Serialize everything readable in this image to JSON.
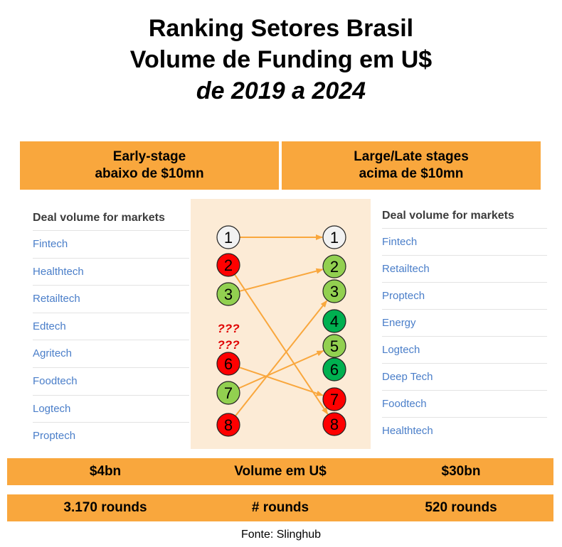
{
  "title": {
    "line1": "Ranking Setores Brasil",
    "line2": "Volume de Funding em U$",
    "line3": "de 2019 a 2024"
  },
  "headers": {
    "left": {
      "line1": "Early-stage",
      "line2": "abaixo de $10mn"
    },
    "right": {
      "line1": "Large/Late stages",
      "line2": "acima de $10mn"
    }
  },
  "left_list": {
    "header": "Deal volume for markets",
    "items": [
      "Fintech",
      "Healthtech",
      "Retailtech",
      "Edtech",
      "Agritech",
      "Foodtech",
      "Logtech",
      "Proptech"
    ]
  },
  "right_list": {
    "header": "Deal volume for markets",
    "items": [
      "Fintech",
      "Retailtech",
      "Proptech",
      "Energy",
      "Logtech",
      "Deep Tech",
      "Foodtech",
      "Healthtech"
    ]
  },
  "diagram": {
    "left_nodes": [
      {
        "label": "1",
        "color": "#f2f2f2"
      },
      {
        "label": "2",
        "color": "#ff0000"
      },
      {
        "label": "3",
        "color": "#92d050"
      },
      {
        "label": "???",
        "color": ""
      },
      {
        "label": "???",
        "color": ""
      },
      {
        "label": "6",
        "color": "#ff0000"
      },
      {
        "label": "7",
        "color": "#92d050"
      },
      {
        "label": "8",
        "color": "#ff0000"
      }
    ],
    "right_nodes": [
      {
        "label": "1",
        "color": "#f2f2f2"
      },
      {
        "label": "2",
        "color": "#92d050"
      },
      {
        "label": "3",
        "color": "#92d050"
      },
      {
        "label": "4",
        "color": "#00b050"
      },
      {
        "label": "5",
        "color": "#92d050"
      },
      {
        "label": "6",
        "color": "#00b050"
      },
      {
        "label": "7",
        "color": "#ff0000"
      },
      {
        "label": "8",
        "color": "#ff0000"
      }
    ],
    "arrows": [
      {
        "from": "1",
        "to": "1"
      },
      {
        "from": "2",
        "to": "8"
      },
      {
        "from": "3",
        "to": "2"
      },
      {
        "from": "6",
        "to": "7"
      },
      {
        "from": "7",
        "to": "5"
      },
      {
        "from": "8",
        "to": "3"
      }
    ],
    "arrow_color": "#f9a73d"
  },
  "footer": {
    "row1": {
      "left": "$4bn",
      "center": "Volume em U$",
      "right": "$30bn"
    },
    "row2": {
      "left": "3.170 rounds",
      "center": "# rounds",
      "right": "520 rounds"
    }
  },
  "source": "Fonte: Slinghub"
}
